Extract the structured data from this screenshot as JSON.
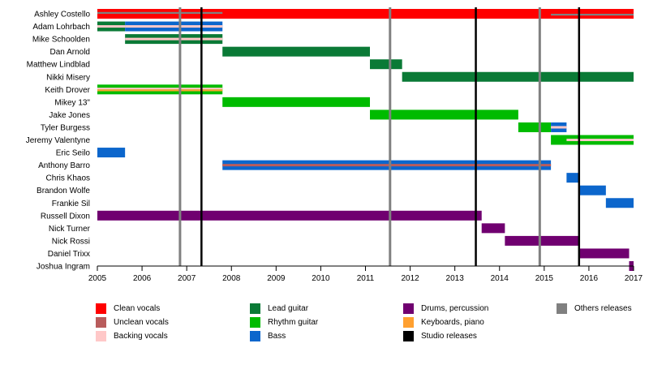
{
  "chart_data": {
    "type": "timeline",
    "title": "",
    "xlabel": "",
    "ylabel": "",
    "xlim": [
      2005,
      2017
    ],
    "x_ticks": [
      "2005",
      "2006",
      "2007",
      "2008",
      "2009",
      "2010",
      "2011",
      "2012",
      "2013",
      "2014",
      "2015",
      "2016",
      "2017"
    ],
    "grid": false,
    "members": [
      "Ashley Costello",
      "Adam Lohrbach",
      "Mike Schoolden",
      "Dan Arnold",
      "Matthew Lindblad",
      "Nikki Misery",
      "Keith Drover",
      "Mikey 13\"",
      "Jake Jones",
      "Tyler Burgess",
      "Jeremy Valentyne",
      "Eric Seilo",
      "Anthony Barro",
      "Chris Khaos",
      "Brandon Wolfe",
      "Frankie Sil",
      "Russell Dixon",
      "Nick Turner",
      "Nick Rossi",
      "Daniel Trixx",
      "Joshua Ingram"
    ],
    "roles": {
      "clean_vocals": {
        "label": "Clean vocals",
        "color": "#ff0000"
      },
      "unclean_vocals": {
        "label": "Unclean vocals",
        "color": "#b85c5c"
      },
      "backing_vocals": {
        "label": "Backing vocals",
        "color": "#ffc8c8"
      },
      "lead_guitar": {
        "label": "Lead guitar",
        "color": "#0a7a36"
      },
      "rhythm_guitar": {
        "label": "Rhythm guitar",
        "color": "#00bb00"
      },
      "bass": {
        "label": "Bass",
        "color": "#0c66cc"
      },
      "drums": {
        "label": "Drums, percussion",
        "color": "#700070"
      },
      "keyboards": {
        "label": "Keyboards, piano",
        "color": "#ffa030"
      },
      "studio": {
        "label": "Studio releases",
        "color": "#000000"
      },
      "others": {
        "label": "Others releases",
        "color": "#808080"
      }
    },
    "legend_order": [
      [
        "clean_vocals",
        "unclean_vocals",
        "backing_vocals"
      ],
      [
        "lead_guitar",
        "rhythm_guitar",
        "bass"
      ],
      [
        "drums",
        "keyboards",
        "studio"
      ],
      [
        "others"
      ]
    ],
    "bars": [
      {
        "member": 0,
        "role": "clean_vocals",
        "start": 2005.0,
        "end": 2017.0,
        "stripes": [
          {
            "role": "others",
            "start": 2005.0,
            "end": 2007.8
          },
          {
            "role": "others",
            "start": 2015.15,
            "end": 2017.0
          }
        ]
      },
      {
        "member": 1,
        "role": "lead_guitar",
        "start": 2005.0,
        "end": 2005.62,
        "stripes": [
          {
            "role": "backing_vocals",
            "start": 2005.0,
            "end": 2005.62
          }
        ]
      },
      {
        "member": 1,
        "role": "bass",
        "start": 2005.62,
        "end": 2007.8,
        "stripes": [
          {
            "role": "backing_vocals",
            "start": 2005.62,
            "end": 2007.8
          }
        ]
      },
      {
        "member": 2,
        "role": "lead_guitar",
        "start": 2005.62,
        "end": 2007.8,
        "stripes": [
          {
            "role": "backing_vocals",
            "start": 2005.62,
            "end": 2007.8
          }
        ]
      },
      {
        "member": 3,
        "role": "lead_guitar",
        "start": 2007.8,
        "end": 2011.1,
        "stripes": []
      },
      {
        "member": 4,
        "role": "lead_guitar",
        "start": 2011.1,
        "end": 2011.82,
        "stripes": []
      },
      {
        "member": 5,
        "role": "lead_guitar",
        "start": 2011.82,
        "end": 2017.0,
        "stripes": []
      },
      {
        "member": 6,
        "role": "rhythm_guitar",
        "start": 2005.0,
        "end": 2007.8,
        "stripes": [
          {
            "role": "backing_vocals",
            "start": 2005.0,
            "end": 2007.8
          },
          {
            "role": "keyboards",
            "start": 2005.0,
            "end": 2007.8
          }
        ]
      },
      {
        "member": 7,
        "role": "rhythm_guitar",
        "start": 2007.8,
        "end": 2011.1,
        "stripes": []
      },
      {
        "member": 8,
        "role": "rhythm_guitar",
        "start": 2011.1,
        "end": 2014.42,
        "stripes": []
      },
      {
        "member": 9,
        "role": "rhythm_guitar",
        "start": 2014.42,
        "end": 2015.15,
        "stripes": []
      },
      {
        "member": 9,
        "role": "bass",
        "start": 2015.15,
        "end": 2015.5,
        "stripes": [
          {
            "role": "backing_vocals",
            "start": 2015.15,
            "end": 2015.5
          }
        ]
      },
      {
        "member": 10,
        "role": "rhythm_guitar",
        "start": 2015.15,
        "end": 2017.0,
        "stripes": [
          {
            "role": "backing_vocals",
            "start": 2015.5,
            "end": 2017.0
          }
        ]
      },
      {
        "member": 11,
        "role": "bass",
        "start": 2005.0,
        "end": 2005.62,
        "stripes": []
      },
      {
        "member": 12,
        "role": "bass",
        "start": 2007.8,
        "end": 2015.15,
        "stripes": [
          {
            "role": "unclean_vocals",
            "start": 2007.8,
            "end": 2015.15
          }
        ]
      },
      {
        "member": 13,
        "role": "bass",
        "start": 2015.5,
        "end": 2015.8,
        "stripes": []
      },
      {
        "member": 14,
        "role": "bass",
        "start": 2015.8,
        "end": 2016.38,
        "stripes": []
      },
      {
        "member": 15,
        "role": "bass",
        "start": 2016.38,
        "end": 2017.0,
        "stripes": []
      },
      {
        "member": 16,
        "role": "drums",
        "start": 2005.0,
        "end": 2013.6,
        "stripes": []
      },
      {
        "member": 17,
        "role": "drums",
        "start": 2013.6,
        "end": 2014.12,
        "stripes": []
      },
      {
        "member": 18,
        "role": "drums",
        "start": 2014.12,
        "end": 2015.8,
        "stripes": []
      },
      {
        "member": 19,
        "role": "drums",
        "start": 2015.8,
        "end": 2016.9,
        "stripes": []
      },
      {
        "member": 20,
        "role": "drums",
        "start": 2016.9,
        "end": 2017.0,
        "stripes": []
      }
    ],
    "releases": [
      {
        "type": "others",
        "date": 2006.85
      },
      {
        "type": "studio",
        "date": 2007.33
      },
      {
        "type": "others",
        "date": 2011.55
      },
      {
        "type": "studio",
        "date": 2013.47
      },
      {
        "type": "others",
        "date": 2014.9
      },
      {
        "type": "studio",
        "date": 2015.78
      }
    ]
  }
}
